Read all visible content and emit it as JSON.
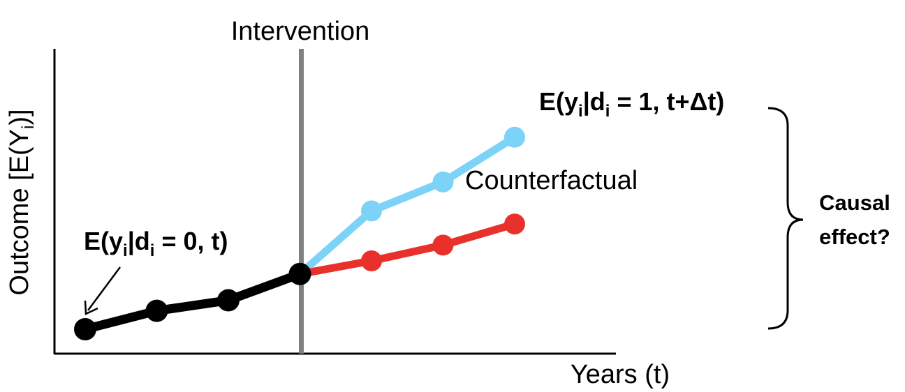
{
  "diagram": {
    "intervention_label": "Intervention",
    "x_axis_label": "Years (t)",
    "y_axis_label": {
      "main": "Outcome [E(Y",
      "sub": "i",
      "tail": ")]"
    },
    "pre_label": {
      "p1": "E(y",
      "s1": "i",
      "p2": "|d",
      "s2": "i",
      "p3": " = 0, t)"
    },
    "treated_label": {
      "p1": "E(y",
      "s1": "i",
      "p2": "|d",
      "s2": "i",
      "p3": " = 1, t+Δt)"
    },
    "counterfactual_label": "Counterfactual",
    "causal_label": [
      "Causal",
      "effect?"
    ],
    "colors": {
      "pre": "#000000",
      "treated": "#7dd3f7",
      "counterfactual": "#e8312a",
      "intervention_line": "#808080"
    },
    "series": {
      "pre": [
        [
          0,
          0.0
        ],
        [
          1,
          0.7
        ],
        [
          2,
          1.1
        ],
        [
          3,
          2.1
        ]
      ],
      "treated": [
        [
          3,
          2.1
        ],
        [
          4,
          4.5
        ],
        [
          5,
          5.6
        ],
        [
          6,
          7.3
        ]
      ],
      "counterfactual": [
        [
          3,
          2.1
        ],
        [
          4,
          2.6
        ],
        [
          5,
          3.2
        ],
        [
          6,
          4.0
        ]
      ]
    },
    "intervention_x": 3
  }
}
